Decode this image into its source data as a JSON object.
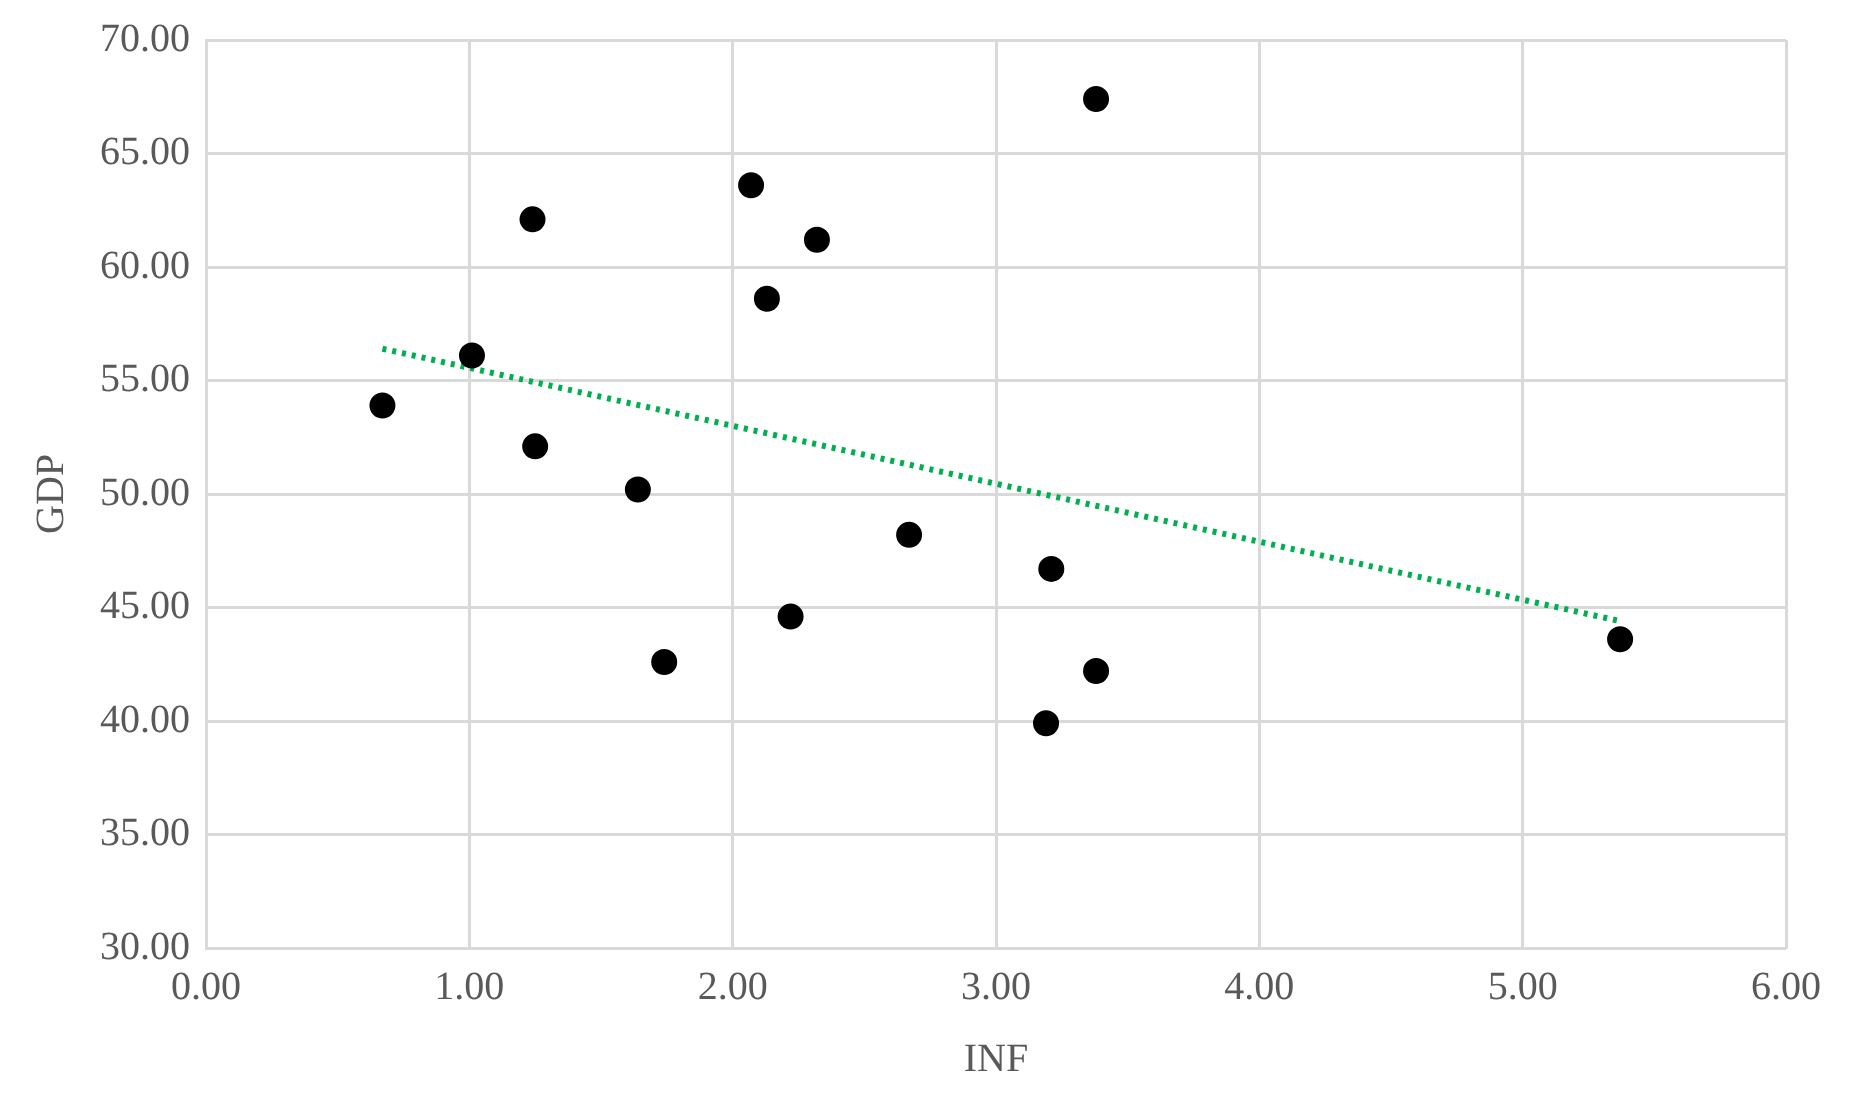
{
  "chart_data": {
    "type": "scatter",
    "xlabel": "INF",
    "ylabel": "GDP",
    "xlim": [
      0,
      6
    ],
    "ylim": [
      30,
      70
    ],
    "xticks": [
      {
        "value": 0,
        "label": "0.00"
      },
      {
        "value": 1,
        "label": "1.00"
      },
      {
        "value": 2,
        "label": "2.00"
      },
      {
        "value": 3,
        "label": "3.00"
      },
      {
        "value": 4,
        "label": "4.00"
      },
      {
        "value": 5,
        "label": "5.00"
      },
      {
        "value": 6,
        "label": "6.00"
      }
    ],
    "yticks": [
      {
        "value": 30,
        "label": "30.00"
      },
      {
        "value": 35,
        "label": "35.00"
      },
      {
        "value": 40,
        "label": "40.00"
      },
      {
        "value": 45,
        "label": "45.00"
      },
      {
        "value": 50,
        "label": "50.00"
      },
      {
        "value": 55,
        "label": "55.00"
      },
      {
        "value": 60,
        "label": "60.00"
      },
      {
        "value": 65,
        "label": "65.00"
      },
      {
        "value": 70,
        "label": "70.00"
      }
    ],
    "grid": true,
    "legend": false,
    "marker": "circle",
    "series": [
      {
        "type": "scatter",
        "color": "#000000",
        "x": [
          0.67,
          1.01,
          1.24,
          1.25,
          1.64,
          1.74,
          2.07,
          2.13,
          2.22,
          2.32,
          2.67,
          3.21,
          3.19,
          3.38,
          3.38,
          5.37
        ],
        "values": [
          53.9,
          56.1,
          62.1,
          52.1,
          50.2,
          42.6,
          63.6,
          58.6,
          44.6,
          61.2,
          48.2,
          46.7,
          39.9,
          42.2,
          67.4,
          43.6
        ]
      },
      {
        "type": "line",
        "color": "#00b050",
        "line_style": "dotted",
        "marker": "none",
        "x": [
          0.67,
          5.37
        ],
        "values": [
          56.4,
          44.4
        ]
      }
    ]
  }
}
